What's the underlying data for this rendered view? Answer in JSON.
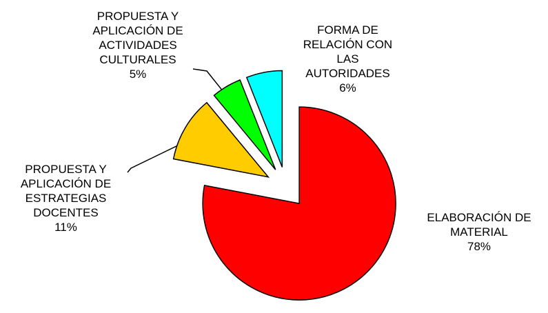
{
  "chart_data": {
    "type": "pie",
    "categories": [
      "ELABORACIÓN DE MATERIAL",
      "PROPUESTA Y APLICACIÓN DE ESTRATEGIAS DOCENTES",
      "PROPUESTA Y APLICACIÓN DE ACTIVIDADES CULTURALES",
      "FORMA DE RELACIÓN CON LAS AUTORIDADES"
    ],
    "values": [
      78,
      11,
      5,
      6
    ],
    "value_labels": [
      "78%",
      "11%",
      "5%",
      "6%"
    ],
    "colors": [
      "#ff0000",
      "#ffcc00",
      "#00ff00",
      "#00ffff"
    ]
  }
}
